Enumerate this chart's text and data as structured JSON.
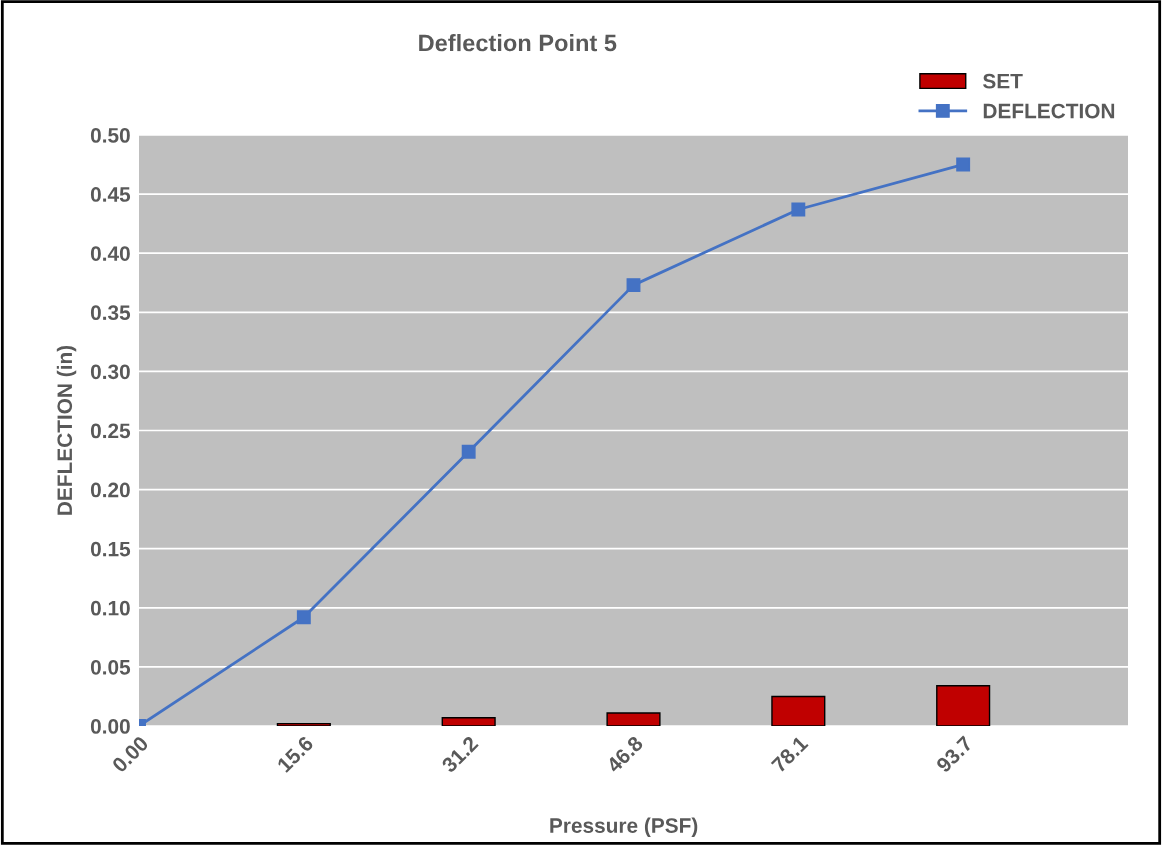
{
  "chart_data": {
    "type": "bar",
    "title": "Deflection Point 5",
    "xlabel": "Pressure (PSF)",
    "ylabel": "DEFLECTION (in)",
    "categories": [
      "0.00",
      "15.6",
      "31.2",
      "46.8",
      "78.1",
      "93.7"
    ],
    "series": [
      {
        "name": "SET",
        "color": "#c00000",
        "values": [
          null,
          0.002,
          0.007,
          0.011,
          0.025,
          0.034
        ]
      },
      {
        "name": "DEFLECTION",
        "type": "line",
        "color": "#4472c4",
        "marker": "square",
        "values": [
          0,
          0.092,
          0.232,
          0.373,
          0.437,
          0.475
        ]
      }
    ],
    "ylim": [
      0,
      0.5
    ],
    "yticks": [
      {
        "value": 0,
        "label": "0.00"
      },
      {
        "value": 0.05,
        "label": "0.05"
      },
      {
        "value": 0.1,
        "label": "0.10"
      },
      {
        "value": 0.15,
        "label": "0.15"
      },
      {
        "value": 0.2,
        "label": "0.20"
      },
      {
        "value": 0.25,
        "label": "0.25"
      },
      {
        "value": 0.3,
        "label": "0.30"
      },
      {
        "value": 0.35,
        "label": "0.35"
      },
      {
        "value": 0.4,
        "label": "0.40"
      },
      {
        "value": 0.45,
        "label": "0.45"
      },
      {
        "value": 0.5,
        "label": "0.50"
      }
    ],
    "grid": "y",
    "legend": "top right"
  }
}
